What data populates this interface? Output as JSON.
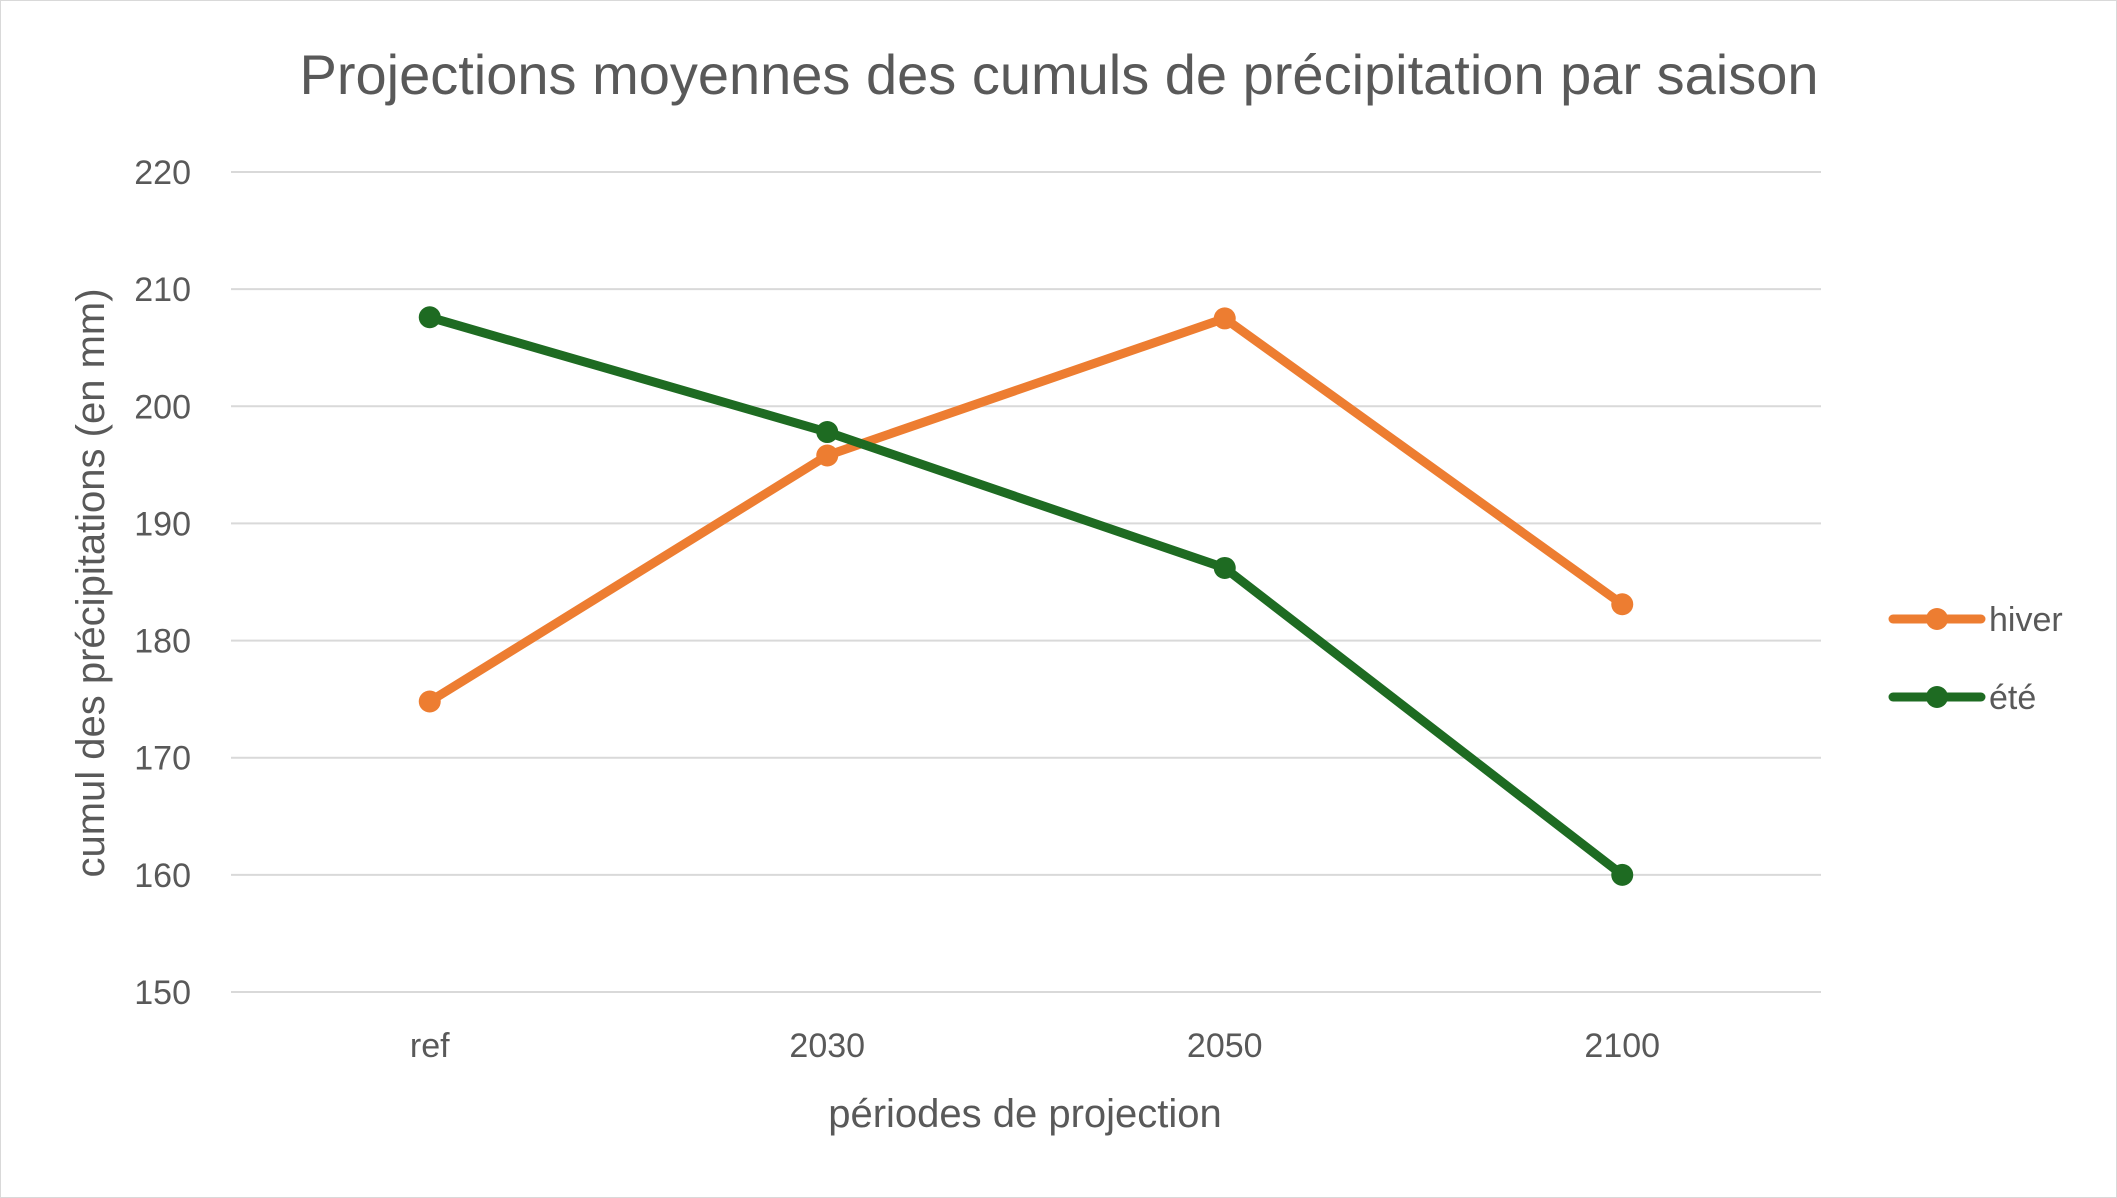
{
  "chart_data": {
    "type": "line",
    "title": "Projections moyennes des cumuls de précipitation par saison",
    "xlabel": "périodes de projection",
    "ylabel": "cumul des précipitations (en mm)",
    "categories": [
      "ref",
      "2030",
      "2050",
      "2100"
    ],
    "ylim": [
      150,
      220
    ],
    "yticks": [
      150,
      160,
      170,
      180,
      190,
      200,
      210,
      220
    ],
    "ytick_labels": [
      "150",
      "160",
      "170",
      "180",
      "190",
      "200",
      "210",
      "220"
    ],
    "grid": true,
    "legend_position": "right",
    "series": [
      {
        "name": "hiver",
        "color": "#ED7D31",
        "values": [
          174.8,
          195.8,
          207.5,
          183.1
        ]
      },
      {
        "name": "été",
        "color": "#1E6B22",
        "values": [
          207.6,
          197.8,
          186.2,
          160.0
        ]
      }
    ]
  }
}
